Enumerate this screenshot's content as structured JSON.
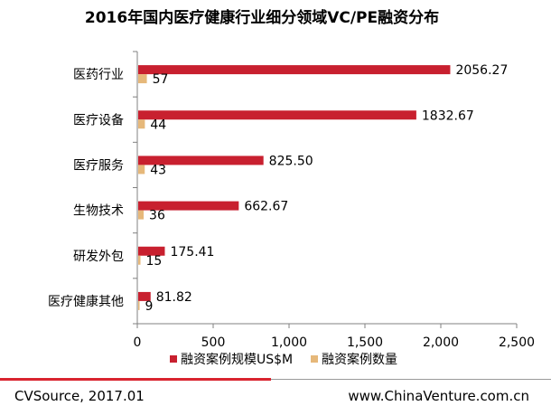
{
  "chart_data": {
    "type": "bar",
    "orientation": "horizontal",
    "title": "2016年国内医疗健康行业细分领域VC/PE融资分布",
    "categories": [
      "医药行业",
      "医疗设备",
      "医疗服务",
      "生物技术",
      "研发外包",
      "医疗健康其他"
    ],
    "series": [
      {
        "name": "融资案例规模US$M",
        "values": [
          2056.27,
          1832.67,
          825.5,
          662.67,
          175.41,
          81.82
        ],
        "labels": [
          "2056.27",
          "1832.67",
          "825.50",
          "662.67",
          "175.41",
          "81.82"
        ],
        "color": "#c8202f"
      },
      {
        "name": "融资案例数量",
        "values": [
          57,
          44,
          43,
          36,
          15,
          9
        ],
        "labels": [
          "57",
          "44",
          "43",
          "36",
          "15",
          "9"
        ],
        "color": "#e6b87a"
      }
    ],
    "xlim": [
      0,
      2500
    ],
    "xticks": [
      0,
      500,
      1000,
      1500,
      2000,
      2500
    ],
    "xtick_labels": [
      "0",
      "500",
      "1,000",
      "1,500",
      "2,000",
      "2,500"
    ],
    "legend_position": "bottom",
    "grid": false
  },
  "footer": {
    "source": "CVSource, 2017.01",
    "website": "www.ChinaVenture.com.cn",
    "accent_color": "#d9232f"
  }
}
